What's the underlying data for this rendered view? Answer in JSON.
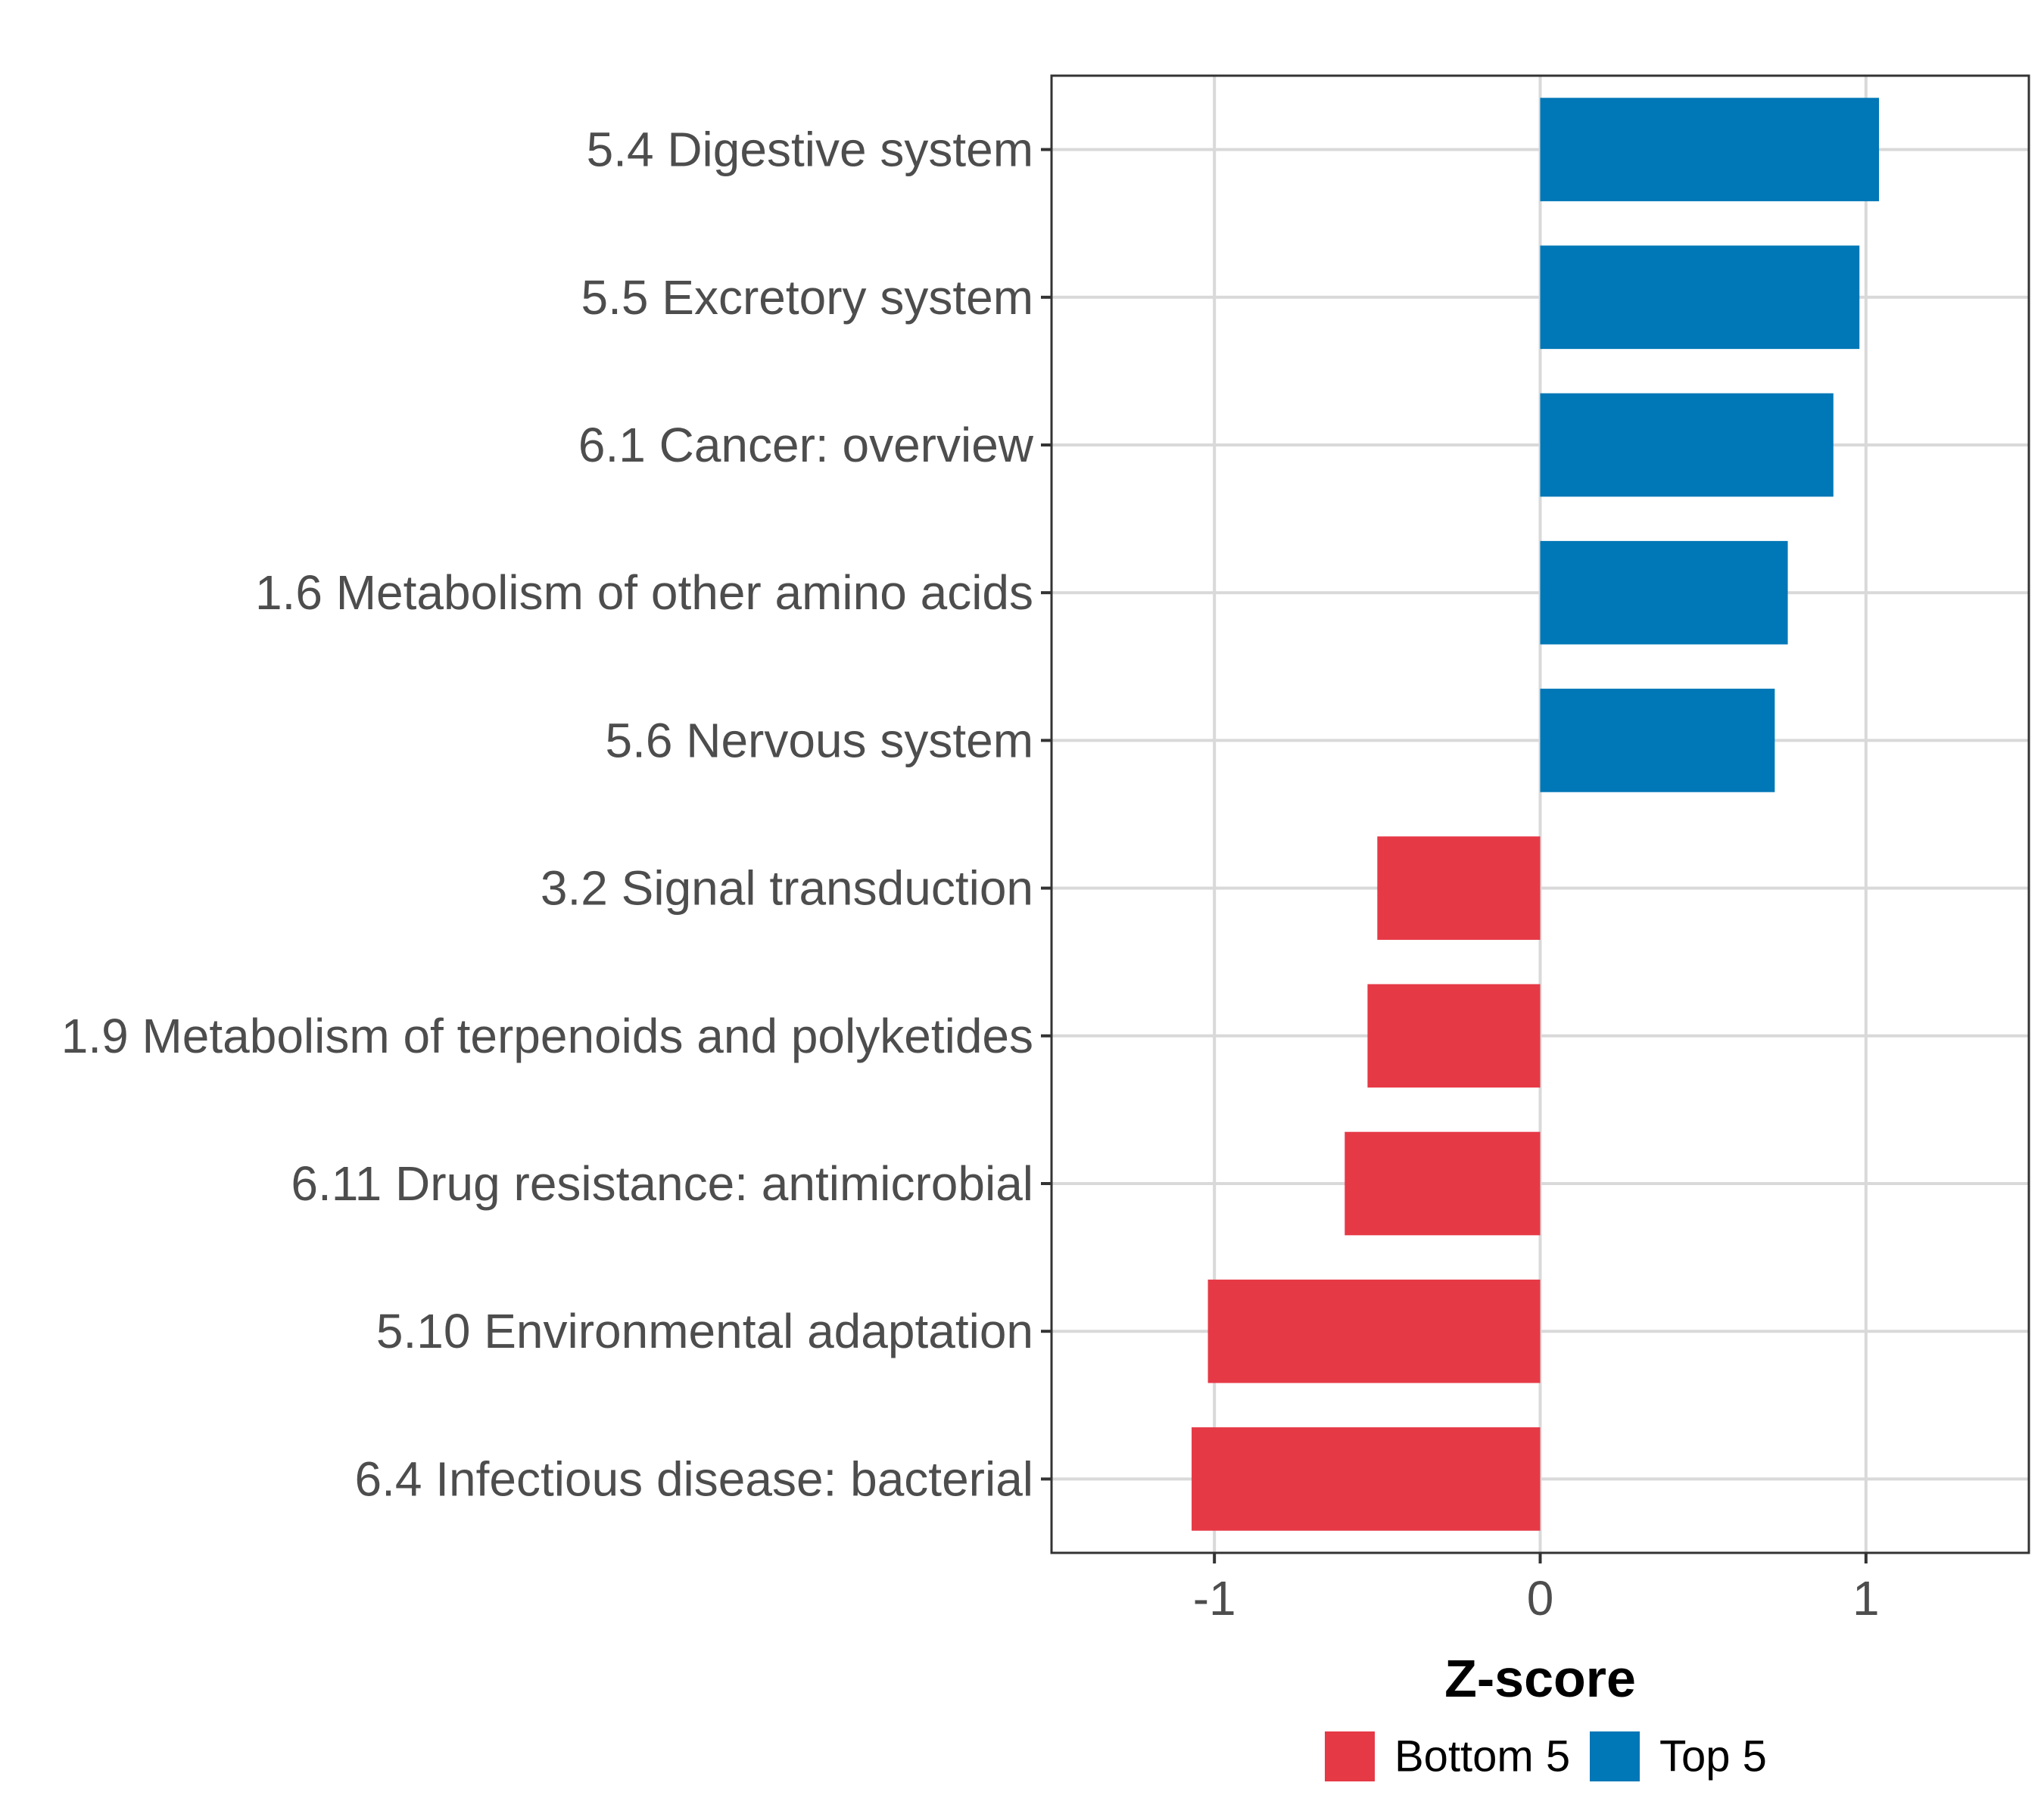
{
  "chart_data": {
    "type": "bar",
    "orientation": "horizontal",
    "title": "",
    "xlabel": "Z-score",
    "ylabel": "",
    "xlim": [
      -1.5,
      1.5
    ],
    "xticks": [
      -1,
      0,
      1
    ],
    "xtick_labels": [
      "-1",
      "0",
      "1"
    ],
    "grid": true,
    "legend_position": "bottom",
    "legend": [
      {
        "label": "Bottom 5",
        "color": "#e63946"
      },
      {
        "label": "Top 5",
        "color": "#0077b6"
      }
    ],
    "categories": [
      "5.4 Digestive system",
      "5.5 Excretory system",
      "6.1 Cancer: overview",
      "1.6 Metabolism of other amino acids",
      "5.6 Nervous system",
      "3.2 Signal transduction",
      "1.9 Metabolism of terpenoids and polyketides",
      "6.11 Drug resistance: antimicrobial",
      "5.10 Environmental adaptation",
      "6.4 Infectious disease: bacterial"
    ],
    "values": [
      1.04,
      0.98,
      0.9,
      0.76,
      0.72,
      -0.5,
      -0.53,
      -0.6,
      -1.02,
      -1.07
    ],
    "groups": [
      "Top 5",
      "Top 5",
      "Top 5",
      "Top 5",
      "Top 5",
      "Bottom 5",
      "Bottom 5",
      "Bottom 5",
      "Bottom 5",
      "Bottom 5"
    ]
  }
}
